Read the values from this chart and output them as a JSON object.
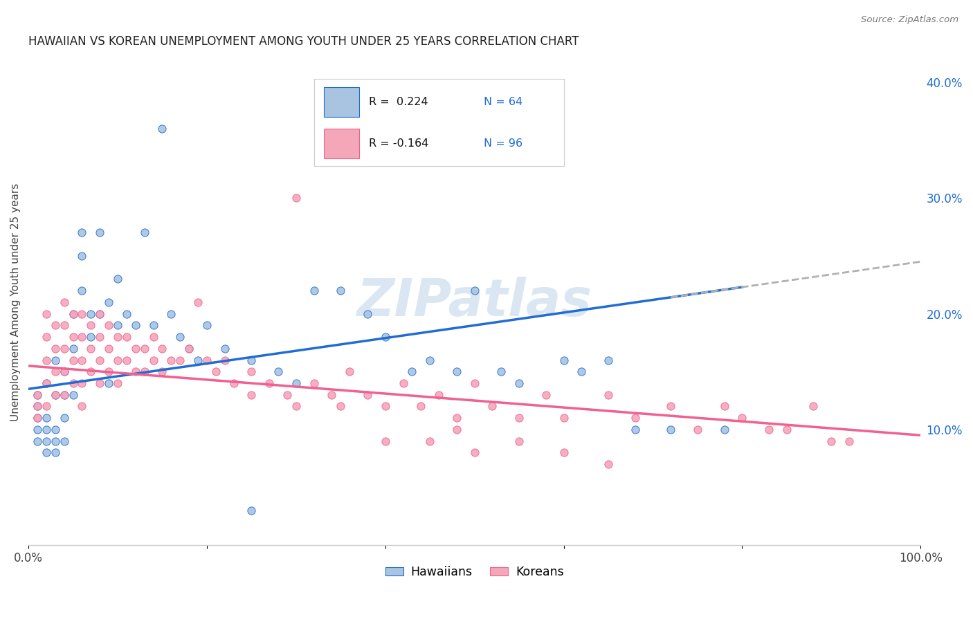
{
  "title": "HAWAIIAN VS KOREAN UNEMPLOYMENT AMONG YOUTH UNDER 25 YEARS CORRELATION CHART",
  "source": "Source: ZipAtlas.com",
  "ylabel": "Unemployment Among Youth under 25 years",
  "xlim": [
    0.0,
    1.0
  ],
  "ylim": [
    0.0,
    0.42
  ],
  "xtick_positions": [
    0.0,
    1.0
  ],
  "xtick_labels": [
    "0.0%",
    "100.0%"
  ],
  "yticks_right": [
    0.1,
    0.2,
    0.3,
    0.4
  ],
  "ytick_labels_right": [
    "10.0%",
    "20.0%",
    "30.0%",
    "40.0%"
  ],
  "hawaiian_color": "#a8c4e0",
  "korean_color": "#f4a7b9",
  "trend_hawaiian_color": "#1f6dd4",
  "trend_korean_color": "#f06090",
  "trend_ext_color": "#b0b0b0",
  "watermark": "ZIPatlas",
  "legend_R_hawaiian": "R =  0.224",
  "legend_N_hawaiian": "N = 64",
  "legend_R_korean": "R = -0.164",
  "legend_N_korean": "N = 96",
  "legend_label_hawaiian": "Hawaiians",
  "legend_label_korean": "Koreans",
  "hawaiian_x": [
    0.01,
    0.01,
    0.01,
    0.01,
    0.01,
    0.02,
    0.02,
    0.02,
    0.02,
    0.02,
    0.03,
    0.03,
    0.03,
    0.03,
    0.03,
    0.04,
    0.04,
    0.04,
    0.04,
    0.05,
    0.05,
    0.05,
    0.06,
    0.06,
    0.06,
    0.07,
    0.07,
    0.08,
    0.08,
    0.09,
    0.09,
    0.1,
    0.1,
    0.11,
    0.12,
    0.13,
    0.14,
    0.15,
    0.16,
    0.17,
    0.18,
    0.19,
    0.2,
    0.22,
    0.25,
    0.28,
    0.3,
    0.32,
    0.35,
    0.38,
    0.4,
    0.43,
    0.45,
    0.48,
    0.5,
    0.53,
    0.55,
    0.6,
    0.62,
    0.65,
    0.68,
    0.72,
    0.78,
    0.25
  ],
  "hawaiian_y": [
    0.12,
    0.11,
    0.1,
    0.09,
    0.13,
    0.14,
    0.11,
    0.1,
    0.09,
    0.08,
    0.16,
    0.13,
    0.1,
    0.09,
    0.08,
    0.15,
    0.13,
    0.11,
    0.09,
    0.2,
    0.17,
    0.13,
    0.27,
    0.25,
    0.22,
    0.2,
    0.18,
    0.27,
    0.2,
    0.21,
    0.14,
    0.23,
    0.19,
    0.2,
    0.19,
    0.27,
    0.19,
    0.36,
    0.2,
    0.18,
    0.17,
    0.16,
    0.19,
    0.17,
    0.16,
    0.15,
    0.14,
    0.22,
    0.22,
    0.2,
    0.18,
    0.15,
    0.16,
    0.15,
    0.22,
    0.15,
    0.14,
    0.16,
    0.15,
    0.16,
    0.1,
    0.1,
    0.1,
    0.03
  ],
  "korean_x": [
    0.01,
    0.01,
    0.01,
    0.02,
    0.02,
    0.02,
    0.02,
    0.02,
    0.03,
    0.03,
    0.03,
    0.03,
    0.04,
    0.04,
    0.04,
    0.04,
    0.04,
    0.05,
    0.05,
    0.05,
    0.05,
    0.06,
    0.06,
    0.06,
    0.06,
    0.06,
    0.07,
    0.07,
    0.07,
    0.08,
    0.08,
    0.08,
    0.08,
    0.09,
    0.09,
    0.09,
    0.1,
    0.1,
    0.1,
    0.11,
    0.11,
    0.12,
    0.12,
    0.13,
    0.13,
    0.14,
    0.14,
    0.15,
    0.15,
    0.16,
    0.17,
    0.18,
    0.19,
    0.2,
    0.21,
    0.22,
    0.23,
    0.25,
    0.27,
    0.29,
    0.3,
    0.32,
    0.34,
    0.36,
    0.38,
    0.4,
    0.42,
    0.44,
    0.46,
    0.48,
    0.5,
    0.52,
    0.55,
    0.58,
    0.6,
    0.65,
    0.68,
    0.72,
    0.75,
    0.78,
    0.8,
    0.83,
    0.85,
    0.88,
    0.9,
    0.92,
    0.35,
    0.4,
    0.45,
    0.5,
    0.55,
    0.6,
    0.65,
    0.25,
    0.3,
    0.48
  ],
  "korean_y": [
    0.13,
    0.12,
    0.11,
    0.2,
    0.18,
    0.16,
    0.14,
    0.12,
    0.19,
    0.17,
    0.15,
    0.13,
    0.21,
    0.19,
    0.17,
    0.15,
    0.13,
    0.2,
    0.18,
    0.16,
    0.14,
    0.2,
    0.18,
    0.16,
    0.14,
    0.12,
    0.19,
    0.17,
    0.15,
    0.2,
    0.18,
    0.16,
    0.14,
    0.19,
    0.17,
    0.15,
    0.18,
    0.16,
    0.14,
    0.18,
    0.16,
    0.17,
    0.15,
    0.17,
    0.15,
    0.18,
    0.16,
    0.17,
    0.15,
    0.16,
    0.16,
    0.17,
    0.21,
    0.16,
    0.15,
    0.16,
    0.14,
    0.15,
    0.14,
    0.13,
    0.3,
    0.14,
    0.13,
    0.15,
    0.13,
    0.12,
    0.14,
    0.12,
    0.13,
    0.11,
    0.14,
    0.12,
    0.11,
    0.13,
    0.11,
    0.13,
    0.11,
    0.12,
    0.1,
    0.12,
    0.11,
    0.1,
    0.1,
    0.12,
    0.09,
    0.09,
    0.12,
    0.09,
    0.09,
    0.08,
    0.09,
    0.08,
    0.07,
    0.13,
    0.12,
    0.1
  ]
}
